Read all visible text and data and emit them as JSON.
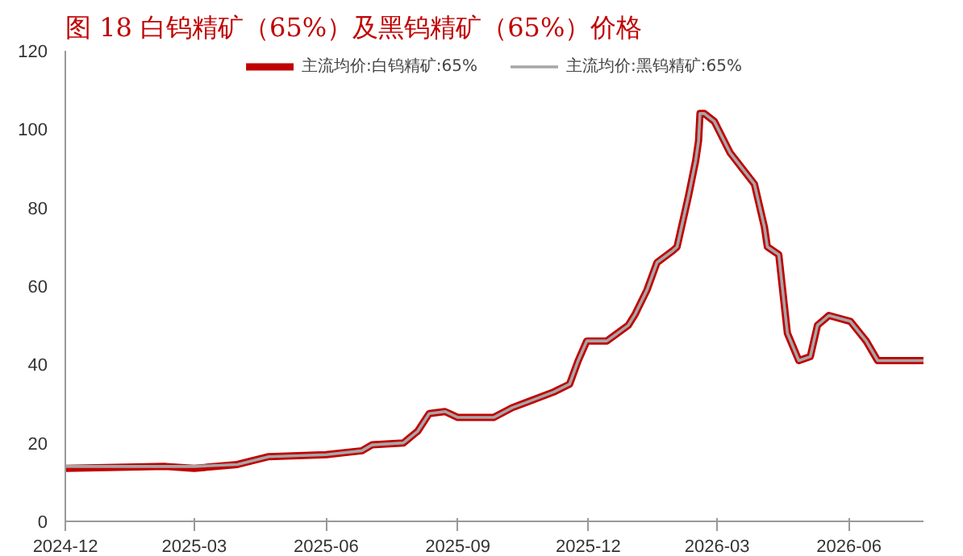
{
  "chart_data": {
    "type": "line",
    "title": "图 18 白钨精矿（65%）及黑钨精矿（65%）价格",
    "x": [
      "2024-12-01",
      "2025-02-09",
      "2025-03-01",
      "2025-03-31",
      "2025-04-22",
      "2025-06-01",
      "2025-06-26",
      "2025-07-03",
      "2025-07-25",
      "2025-08-04",
      "2025-08-12",
      "2025-08-23",
      "2025-09-01",
      "2025-09-26",
      "2025-10-09",
      "2025-10-20",
      "2025-11-07",
      "2025-11-18",
      "2025-11-24",
      "2025-11-30",
      "2025-12-14",
      "2025-12-29",
      "2026-01-03",
      "2026-01-11",
      "2026-01-18",
      "2026-01-29",
      "2026-02-01",
      "2026-02-09",
      "2026-02-14",
      "2026-02-16",
      "2026-02-17",
      "2026-02-20",
      "2026-02-27",
      "2026-03-10",
      "2026-03-27",
      "2026-04-03",
      "2026-04-05",
      "2026-04-13",
      "2026-04-19",
      "2026-04-27",
      "2026-05-05",
      "2026-05-10",
      "2026-05-18",
      "2026-06-02",
      "2026-06-13",
      "2026-06-21",
      "2026-07-23"
    ],
    "series": [
      {
        "name": "主流均价:白钨精矿:65%",
        "color": "#c00000",
        "values": [
          13.5,
          14,
          13.5,
          14.5,
          16.5,
          17,
          18,
          19.5,
          20,
          23,
          27.5,
          28,
          26.5,
          26.5,
          29,
          30.5,
          33,
          35,
          41,
          46,
          46,
          50,
          53,
          59,
          66,
          69,
          70,
          83,
          92,
          97,
          104,
          104,
          102,
          94,
          86,
          75,
          70,
          68,
          48,
          41,
          42,
          50,
          52.5,
          51,
          46,
          41,
          41
        ]
      },
      {
        "name": "主流均价:黑钨精矿:65%",
        "color": "#a6a6a6",
        "values": [
          14,
          14,
          14,
          14.5,
          16.5,
          17,
          18,
          19.5,
          20,
          23,
          27.5,
          28,
          26.5,
          26.5,
          29,
          30.5,
          33,
          35,
          41,
          46,
          46,
          50,
          53,
          59,
          66,
          69,
          70,
          83,
          92,
          97,
          104,
          104,
          102,
          94,
          86,
          75,
          70,
          68,
          48,
          41,
          42,
          50,
          52.5,
          51,
          46,
          41,
          41
        ]
      }
    ],
    "xlim": [
      "2024-12-01",
      "2026-07-23"
    ],
    "xticks": [
      {
        "value": "2024-12-01",
        "label": "2024-12"
      },
      {
        "value": "2025-03-01",
        "label": "2025-03"
      },
      {
        "value": "2025-06-01",
        "label": "2025-06"
      },
      {
        "value": "2025-09-01",
        "label": "2025-09"
      },
      {
        "value": "2025-12-01",
        "label": "2025-12"
      },
      {
        "value": "2026-03-01",
        "label": "2026-03"
      },
      {
        "value": "2026-06-01",
        "label": "2026-06"
      }
    ],
    "ylim": [
      0,
      120
    ],
    "yticks": [
      0,
      20,
      40,
      60,
      80,
      100,
      120
    ],
    "grid": false,
    "legend": "top",
    "marker": "none",
    "line_style": "solid"
  }
}
